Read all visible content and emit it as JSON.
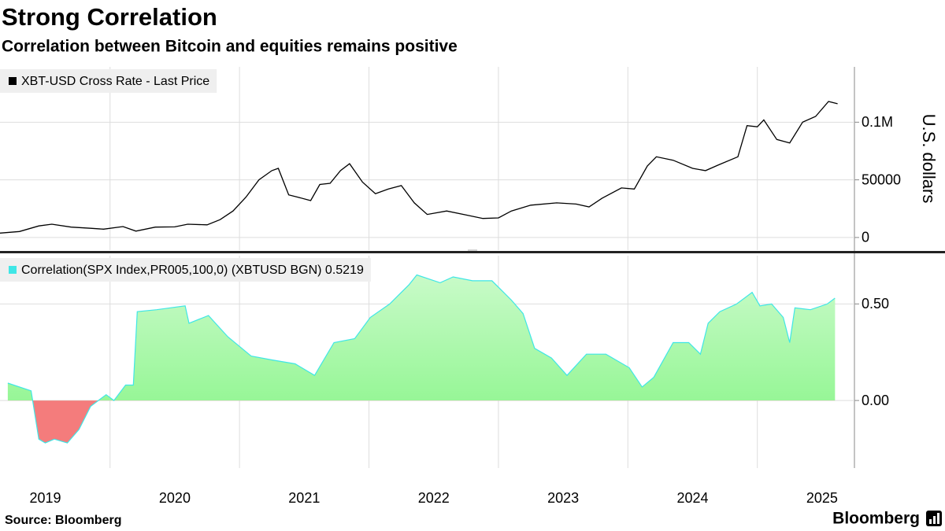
{
  "title": "Strong Correlation",
  "subtitle": "Correlation between Bitcoin and equities remains positive",
  "source": "Source: Bloomberg",
  "brand": "Bloomberg",
  "chart_data": [
    {
      "type": "line",
      "ylabel": "U.S. dollars",
      "xlim": [
        2019.15,
        2025.75
      ],
      "xgrid": [
        2020,
        2021,
        2022,
        2023,
        2024,
        2025
      ],
      "ylim": [
        -11000,
        148000
      ],
      "yticks": [
        0,
        50000,
        {
          "value": 100000,
          "label": "0.1M"
        }
      ],
      "grid": true,
      "series": [
        {
          "name": "XBT-USD Cross Rate - Last Price",
          "color": "#000000",
          "x": [
            2019.15,
            2019.3,
            2019.45,
            2019.55,
            2019.7,
            2019.85,
            2019.95,
            2020.1,
            2020.2,
            2020.35,
            2020.5,
            2020.6,
            2020.75,
            2020.85,
            2020.95,
            2021.05,
            2021.15,
            2021.25,
            2021.3,
            2021.38,
            2021.45,
            2021.55,
            2021.62,
            2021.7,
            2021.78,
            2021.85,
            2021.95,
            2022.05,
            2022.15,
            2022.25,
            2022.35,
            2022.45,
            2022.6,
            2022.75,
            2022.88,
            2023.0,
            2023.1,
            2023.25,
            2023.45,
            2023.6,
            2023.7,
            2023.8,
            2023.95,
            2024.05,
            2024.15,
            2024.22,
            2024.35,
            2024.5,
            2024.6,
            2024.7,
            2024.85,
            2024.92,
            2025.0,
            2025.05,
            2025.15,
            2025.25,
            2025.35,
            2025.45,
            2025.55,
            2025.62
          ],
          "values": [
            3800,
            5200,
            10000,
            11500,
            9000,
            8000,
            7200,
            9500,
            5500,
            9000,
            9200,
            11500,
            11000,
            15500,
            23000,
            35000,
            50000,
            58000,
            60000,
            37000,
            35000,
            32000,
            46000,
            47000,
            58000,
            64000,
            48000,
            38000,
            42000,
            45000,
            30000,
            20000,
            23000,
            19500,
            16500,
            17000,
            23000,
            28000,
            30000,
            29000,
            26500,
            34000,
            43000,
            42000,
            62000,
            70000,
            67000,
            60000,
            58000,
            63000,
            70000,
            97000,
            96000,
            102000,
            85000,
            82000,
            100000,
            105000,
            118000,
            116000
          ]
        }
      ]
    },
    {
      "type": "area",
      "xlim": [
        2019.15,
        2025.75
      ],
      "xgrid": [
        2020,
        2021,
        2022,
        2023,
        2024,
        2025
      ],
      "xticks": [
        {
          "value": 2019.5,
          "label": "2019"
        },
        {
          "value": 2020.5,
          "label": "2020"
        },
        {
          "value": 2021.5,
          "label": "2021"
        },
        {
          "value": 2022.5,
          "label": "2022"
        },
        {
          "value": 2023.5,
          "label": "2023"
        },
        {
          "value": 2024.5,
          "label": "2024"
        },
        {
          "value": 2025.5,
          "label": "2025"
        }
      ],
      "ylim": [
        -0.35,
        0.75
      ],
      "yticks": [
        {
          "value": 0,
          "label": "0.00"
        },
        {
          "value": 0.5,
          "label": "0.50"
        }
      ],
      "grid": true,
      "fill_positive": "#86f586",
      "fill_negative": "#f47c7c",
      "series": [
        {
          "name": "Correlation(SPX Index,PR005,100,0) (XBTUSD BGN) 0.5219",
          "color": "#3fe6e6",
          "x": [
            2019.21,
            2019.39,
            2019.45,
            2019.5,
            2019.57,
            2019.67,
            2019.76,
            2019.85,
            2019.97,
            2020.03,
            2020.12,
            2020.18,
            2020.21,
            2020.36,
            2020.58,
            2020.61,
            2020.76,
            2020.91,
            2021.09,
            2021.25,
            2021.43,
            2021.58,
            2021.73,
            2021.89,
            2022.01,
            2022.16,
            2022.31,
            2022.37,
            2022.55,
            2022.65,
            2022.8,
            2022.95,
            2023.1,
            2023.19,
            2023.28,
            2023.41,
            2023.53,
            2023.68,
            2023.83,
            2024.01,
            2024.11,
            2024.2,
            2024.35,
            2024.47,
            2024.56,
            2024.62,
            2024.71,
            2024.84,
            2024.96,
            2025.02,
            2025.11,
            2025.2,
            2025.25,
            2025.29,
            2025.41,
            2025.54,
            2025.6
          ],
          "values": [
            0.09,
            0.05,
            -0.2,
            -0.22,
            -0.2,
            -0.22,
            -0.15,
            -0.03,
            0.03,
            0.0,
            0.08,
            0.08,
            0.46,
            0.47,
            0.49,
            0.4,
            0.44,
            0.33,
            0.23,
            0.21,
            0.19,
            0.13,
            0.3,
            0.32,
            0.43,
            0.5,
            0.6,
            0.65,
            0.61,
            0.64,
            0.62,
            0.62,
            0.52,
            0.45,
            0.27,
            0.22,
            0.13,
            0.24,
            0.24,
            0.17,
            0.07,
            0.12,
            0.3,
            0.3,
            0.24,
            0.4,
            0.46,
            0.5,
            0.56,
            0.49,
            0.5,
            0.43,
            0.3,
            0.48,
            0.47,
            0.5,
            0.53
          ]
        }
      ]
    }
  ]
}
